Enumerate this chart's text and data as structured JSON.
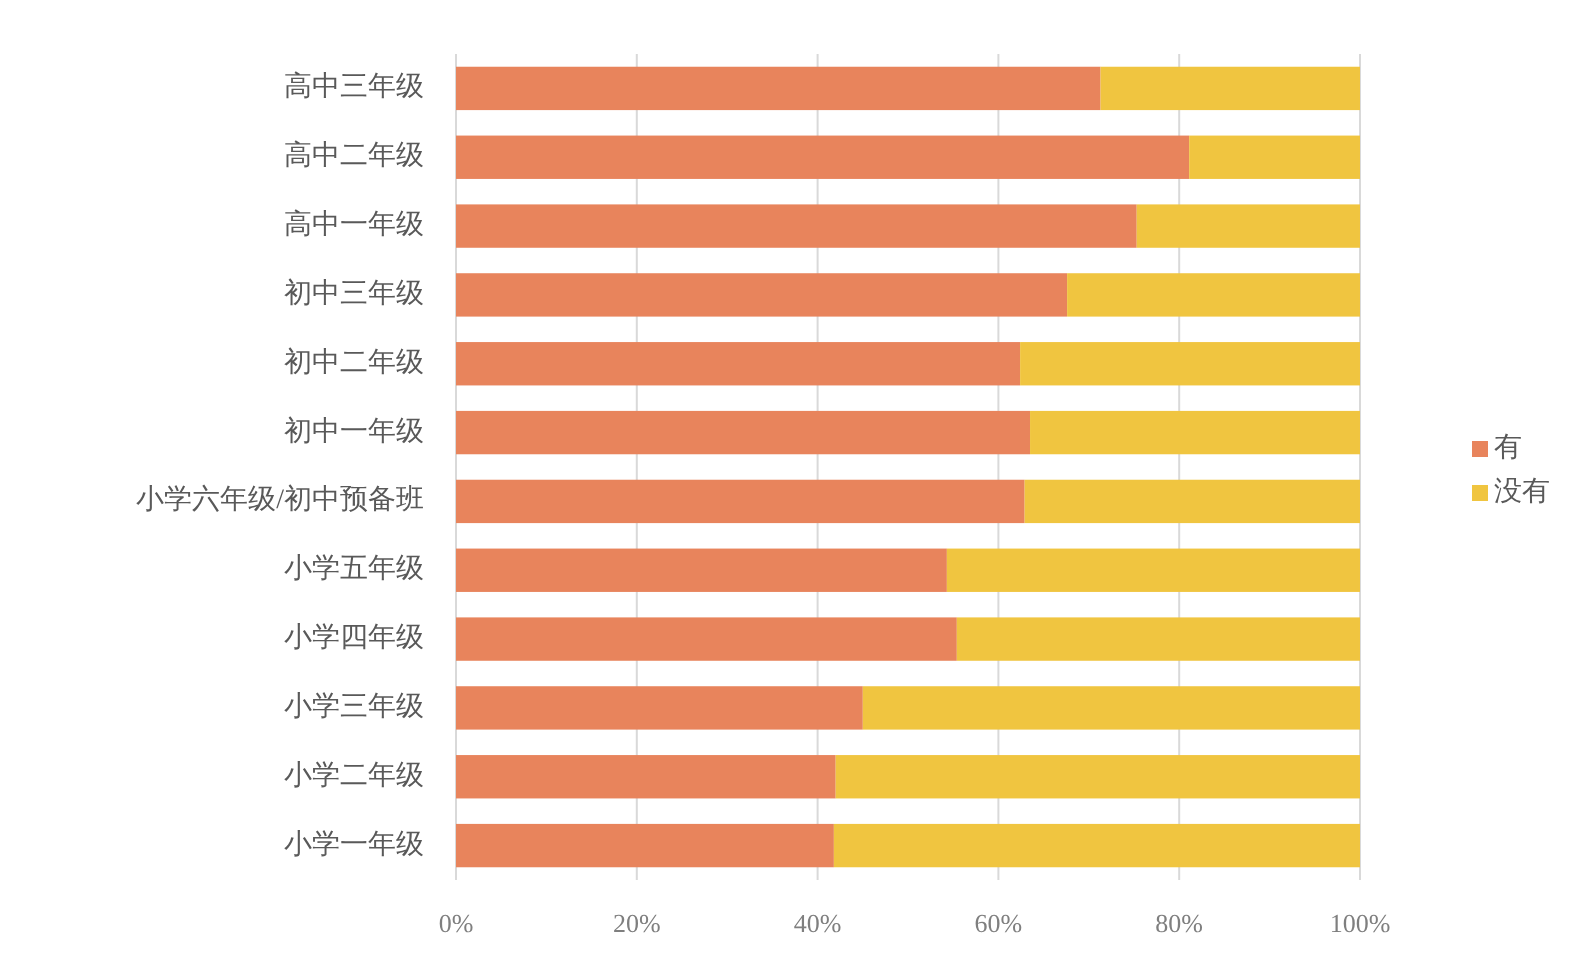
{
  "chart_data": {
    "type": "bar",
    "orientation": "horizontal",
    "stacked": true,
    "categories": [
      "高中三年级",
      "高中二年级",
      "高中一年级",
      "初中三年级",
      "初中二年级",
      "初中一年级",
      "小学六年级/初中预备班",
      "小学五年级",
      "小学四年级",
      "小学三年级",
      "小学二年级",
      "小学一年级"
    ],
    "series": [
      {
        "name": "有",
        "color": "#e8845c",
        "values": [
          71.3,
          81.1,
          75.3,
          67.6,
          62.4,
          63.5,
          62.9,
          54.3,
          55.4,
          45.0,
          42.0,
          41.8
        ]
      },
      {
        "name": "没有",
        "color": "#f0c540",
        "values": [
          28.7,
          18.9,
          24.7,
          32.4,
          37.6,
          36.5,
          37.1,
          45.7,
          44.6,
          55.0,
          58.0,
          58.2
        ]
      }
    ],
    "xlim": [
      0,
      100
    ],
    "xticks": [
      {
        "value": 0,
        "label": "0%"
      },
      {
        "value": 20,
        "label": "20%"
      },
      {
        "value": 40,
        "label": "40%"
      },
      {
        "value": 60,
        "label": "60%"
      },
      {
        "value": 80,
        "label": "80%"
      },
      {
        "value": 100,
        "label": "100%"
      }
    ],
    "grid": "x",
    "legend": "right"
  }
}
